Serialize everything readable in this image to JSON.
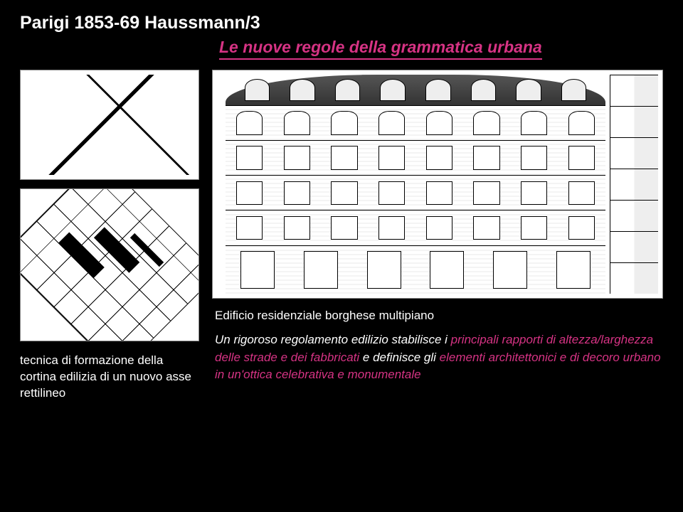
{
  "title": "Parigi 1853-69 Haussmann/3",
  "subtitle": "Le nuove regole della grammatica urbana",
  "leftCaption": "tecnica di formazione della cortina edilizia di un nuovo asse rettilineo",
  "rightTopCaption": "Edificio residenziale borghese multipiano",
  "body": {
    "pre": "Un rigoroso regolamento edilizio stabilisce i ",
    "em1": "principali rapporti di altezza/larghezza delle strade e dei fabbricati",
    "mid": " e definisce gli ",
    "em2": "elementi architettonici e di decoro urbano in un'ottica celebrativa e monumentale"
  },
  "colors": {
    "accent": "#d63384",
    "background": "#000000",
    "text": "#ffffff"
  },
  "facade": {
    "dormers": 8,
    "windowsPerFloor": 8,
    "upperFloors": 4,
    "groundShops": 6,
    "sectionFloors": 7
  }
}
